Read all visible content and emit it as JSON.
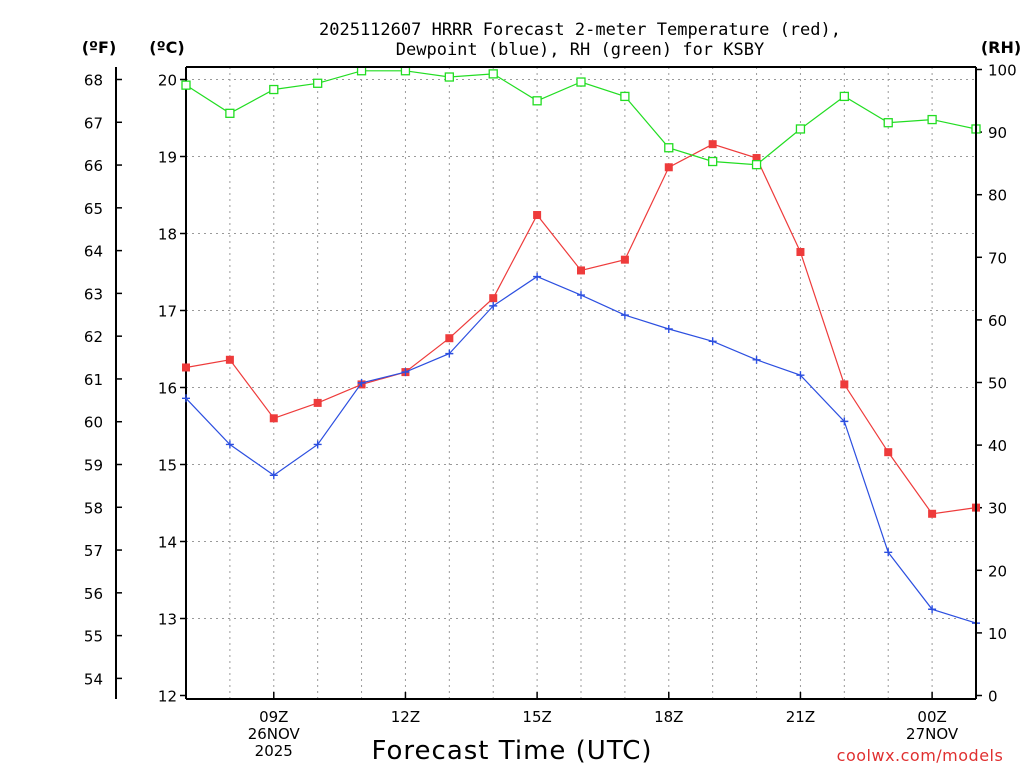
{
  "chart_data": {
    "type": "line",
    "title": [
      "2025112607 HRRR Forecast 2-meter Temperature (red),",
      "Dewpoint (blue), RH (green) for KSBY"
    ],
    "xlabel": "Forecast Time (UTC)",
    "credit": "coolwx.com/models",
    "units": {
      "f": "(ºF)",
      "c": "(ºC)",
      "rh": "(RH)"
    },
    "x_hours": [
      7,
      8,
      9,
      10,
      11,
      12,
      13,
      14,
      15,
      16,
      17,
      18,
      19,
      20,
      21,
      22,
      23,
      24,
      25
    ],
    "xlim": [
      7,
      25
    ],
    "x_ticks": [
      {
        "hour": 9,
        "lines": [
          "09Z",
          "26NOV",
          "2025"
        ]
      },
      {
        "hour": 12,
        "lines": [
          "12Z"
        ]
      },
      {
        "hour": 15,
        "lines": [
          "15Z"
        ]
      },
      {
        "hour": 18,
        "lines": [
          "18Z"
        ]
      },
      {
        "hour": 21,
        "lines": [
          "21Z"
        ]
      },
      {
        "hour": 24,
        "lines": [
          "00Z",
          "27NOV"
        ]
      }
    ],
    "y_left_c": {
      "ticks": [
        12,
        13,
        14,
        15,
        16,
        17,
        18,
        19,
        20
      ],
      "ylim": [
        12,
        20.15
      ]
    },
    "y_left_f": {
      "ticks": [
        54,
        55,
        56,
        57,
        58,
        59,
        60,
        61,
        62,
        63,
        64,
        65,
        66,
        67,
        68
      ]
    },
    "y_right_rh": {
      "ticks": [
        0,
        10,
        20,
        30,
        40,
        50,
        60,
        70,
        80,
        90,
        100
      ],
      "ylim": [
        0,
        100
      ]
    },
    "series": [
      {
        "name": "Temperature",
        "axis": "c",
        "color": "#ee3b3b",
        "marker": "filled-square",
        "values": [
          16.26,
          16.36,
          15.6,
          15.8,
          16.04,
          16.2,
          16.64,
          17.16,
          18.24,
          17.52,
          17.66,
          18.86,
          19.16,
          18.98,
          17.76,
          16.04,
          15.16,
          14.36,
          14.44
        ]
      },
      {
        "name": "Dewpoint",
        "axis": "c",
        "color": "#2c4fe0",
        "marker": "plus",
        "values": [
          15.86,
          15.26,
          14.86,
          15.26,
          16.06,
          16.2,
          16.44,
          17.06,
          17.44,
          17.2,
          16.94,
          16.76,
          16.6,
          16.36,
          16.16,
          15.56,
          13.86,
          13.12,
          12.94
        ]
      },
      {
        "name": "RH",
        "axis": "rh",
        "color": "#22dd22",
        "marker": "open-square",
        "values": [
          97.5,
          93,
          96.8,
          97.8,
          99.8,
          99.8,
          98.8,
          99.3,
          95,
          98,
          95.7,
          87.5,
          85.3,
          84.8,
          90.5,
          95.7,
          91.5,
          92,
          90.5
        ]
      }
    ]
  }
}
